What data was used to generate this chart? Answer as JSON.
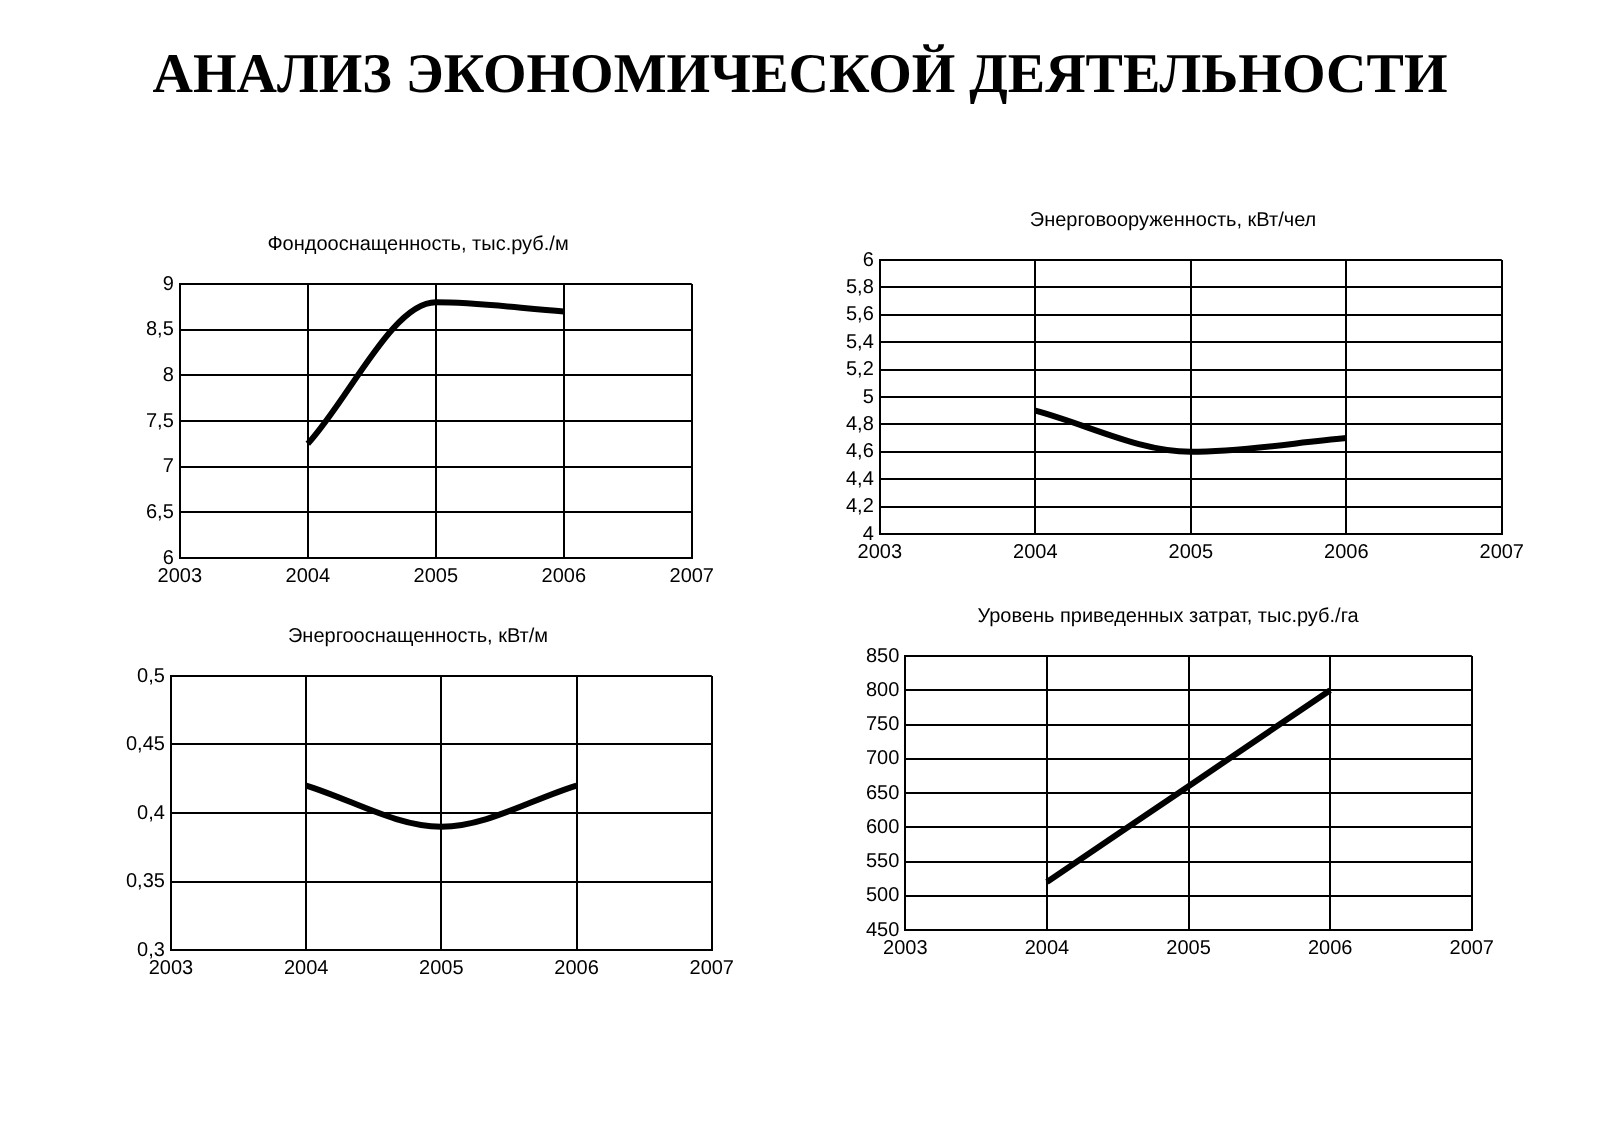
{
  "chart_data": [
    {
      "type": "other",
      "title": "АНАЛИЗ ЭКОНОМИЧЕСКОЙ ДЕЯТЕЛЬНОСТИ"
    },
    {
      "type": "line",
      "title": "Фондооснащенность, тыс.руб./м",
      "x": [
        2004,
        2005,
        2006
      ],
      "values": [
        7.25,
        8.8,
        8.7
      ],
      "color": "#000000",
      "xlim": [
        2003,
        2007
      ],
      "xticks": [
        2003,
        2004,
        2005,
        2006,
        2007
      ],
      "ylim": [
        6,
        9
      ],
      "yticks": [
        6,
        {
          "value": 6.5,
          "label": "6,5"
        },
        7,
        {
          "value": 7.5,
          "label": "7,5"
        },
        8,
        {
          "value": 8.5,
          "label": "8,5"
        },
        9
      ],
      "grid": true,
      "marker": "none",
      "line_style": "solid"
    },
    {
      "type": "line",
      "title": "Энерговооруженность, кВт/чел",
      "x": [
        2004,
        2005,
        2006
      ],
      "values": [
        4.9,
        4.6,
        4.7
      ],
      "color": "#000000",
      "xlim": [
        2003,
        2007
      ],
      "xticks": [
        2003,
        2004,
        2005,
        2006,
        2007
      ],
      "ylim": [
        4,
        6
      ],
      "yticks": [
        4,
        {
          "value": 4.2,
          "label": "4,2"
        },
        {
          "value": 4.4,
          "label": "4,4"
        },
        {
          "value": 4.6,
          "label": "4,6"
        },
        {
          "value": 4.8,
          "label": "4,8"
        },
        5,
        {
          "value": 5.2,
          "label": "5,2"
        },
        {
          "value": 5.4,
          "label": "5,4"
        },
        {
          "value": 5.6,
          "label": "5,6"
        },
        {
          "value": 5.8,
          "label": "5,8"
        },
        6
      ],
      "grid": true,
      "marker": "none",
      "line_style": "solid"
    },
    {
      "type": "line",
      "title": "Энергооснащенность, кВт/м",
      "x": [
        2004,
        2005,
        2006
      ],
      "values": [
        0.42,
        0.39,
        0.42
      ],
      "color": "#000000",
      "xlim": [
        2003,
        2007
      ],
      "xticks": [
        2003,
        2004,
        2005,
        2006,
        2007
      ],
      "ylim": [
        0.3,
        0.5
      ],
      "yticks": [
        {
          "value": 0.3,
          "label": "0,3"
        },
        {
          "value": 0.35,
          "label": "0,35"
        },
        {
          "value": 0.4,
          "label": "0,4"
        },
        {
          "value": 0.45,
          "label": "0,45"
        },
        {
          "value": 0.5,
          "label": "0,5"
        }
      ],
      "grid": true,
      "marker": "none",
      "line_style": "solid"
    },
    {
      "type": "line",
      "title": "Уровень приведенных затрат, тыс.руб./га",
      "x": [
        2004,
        2005,
        2006
      ],
      "values": [
        520,
        660,
        800
      ],
      "color": "#000000",
      "xlim": [
        2003,
        2007
      ],
      "xticks": [
        2003,
        2004,
        2005,
        2006,
        2007
      ],
      "ylim": [
        450,
        850
      ],
      "yticks": [
        450,
        500,
        550,
        600,
        650,
        700,
        750,
        800,
        850
      ],
      "grid": true,
      "marker": "none",
      "line_style": "solid"
    }
  ]
}
